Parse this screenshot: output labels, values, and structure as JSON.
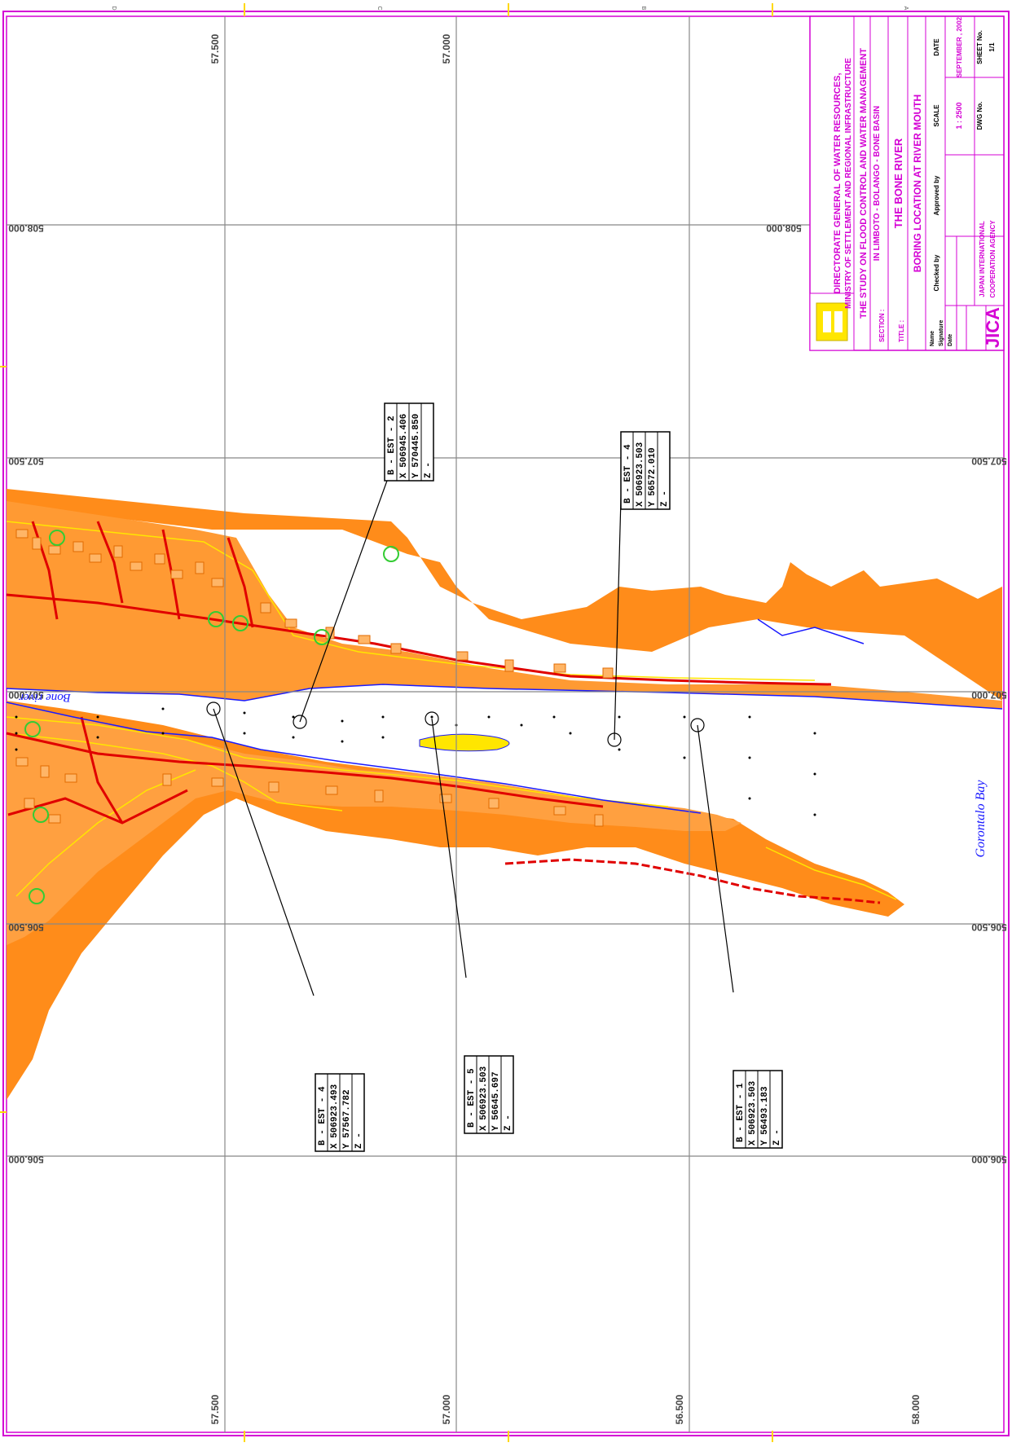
{
  "sheet_letters": [
    "D",
    "C",
    "B",
    "A"
  ],
  "grid": {
    "northing_labels": [
      "508.000",
      "507.500",
      "507.000",
      "506.500",
      "506.000"
    ],
    "easting_labels_top": [
      "57.500",
      "57.000"
    ],
    "easting_labels_bottom": [
      "57.500",
      "57.000",
      "56.500",
      "58.000"
    ]
  },
  "water_labels": {
    "river": "Bone river",
    "bay": "Gorontalo Bay"
  },
  "title_block": {
    "agency_line1": "DIRECTORATE GENERAL OF WATER RESOURCES,",
    "agency_line2": "MINISTRY OF SETTLEMENT AND REGIONAL INFRASTRUCTURE",
    "study_line1": "THE STUDY ON FLOOD CONTROL AND WATER MANAGEMENT",
    "study_line2": "IN LIMBOTO - BOLANGO - BONE BASIN",
    "section_label": "SECTION :",
    "section_value": "THE BONE RIVER",
    "title_label": "TITLE :",
    "title_value": "BORING LOCATION AT RIVER MOUTH",
    "row_labels": [
      "Name",
      "Signature",
      "Date"
    ],
    "checked_by": "Checked by",
    "approved_by": "Approved by",
    "scale_label": "SCALE",
    "scale_value": "1 : 2500",
    "date_label": "DATE",
    "date_value": "SEPTEMBER , 2002",
    "dwg_label": "DWG No.",
    "sheet_label": "SHEET No.",
    "sheet_value": "1/1",
    "jica_logo": "JICA",
    "jica_line1": "JAPAN INTERNATIONAL",
    "jica_line2": "COOPERATION AGENCY"
  },
  "boreholes": [
    {
      "id": "B - EST - 2",
      "x": "X  506945.406",
      "y": "Y  570445.850",
      "z": "Z  -"
    },
    {
      "id": "B - EST - 4",
      "x": "X  506923.503",
      "y": "Y  56572.010",
      "z": "Z  -"
    },
    {
      "id": "B - EST - 4",
      "x": "X  506923.493",
      "y": "Y  57567.782",
      "z": "Z  -"
    },
    {
      "id": "B - EST - 5",
      "x": "X  506923.503",
      "y": "Y  56645.697",
      "z": "Z  -"
    },
    {
      "id": "B - EST - 1",
      "x": "X  506923.503",
      "y": "Y  56493.183",
      "z": "Z  -"
    }
  ],
  "colors": {
    "border": "#d400d4",
    "land": "#ff8c1a",
    "building": "#ff8c1a",
    "contour": "#ffe600",
    "road": "#e00000",
    "water_edge": "#1a1aff",
    "grid": "#888888"
  }
}
